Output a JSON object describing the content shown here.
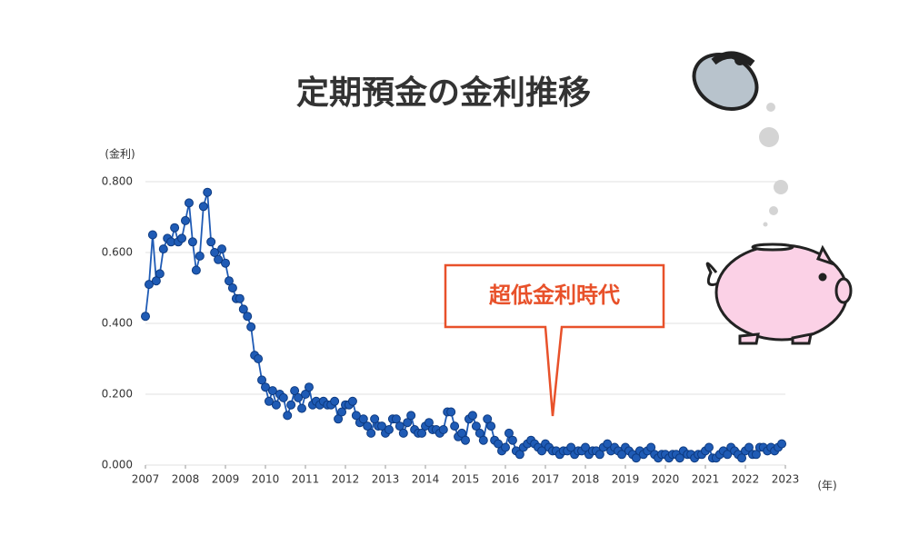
{
  "chart_data": {
    "type": "line",
    "title": "定期預金の金利推移",
    "y_label": "(金利)",
    "x_label": "(年)",
    "annotation": "超低金利時代",
    "color": "#1f5bb5",
    "grid": true,
    "xlim": [
      2007,
      2023
    ],
    "xticks": [
      2007,
      2008,
      2009,
      2010,
      2011,
      2012,
      2013,
      2014,
      2015,
      2016,
      2017,
      2018,
      2019,
      2020,
      2021,
      2022,
      2023
    ],
    "ylim": [
      0,
      0.8
    ],
    "yticks": [
      {
        "value": 0,
        "label": "0.000"
      },
      {
        "value": 0.2,
        "label": "0.200"
      },
      {
        "value": 0.4,
        "label": "0.400"
      },
      {
        "value": 0.6,
        "label": "0.600"
      },
      {
        "value": 0.8,
        "label": "0.800"
      }
    ],
    "x": [
      2007.0,
      2007.09,
      2007.18,
      2007.27,
      2007.36,
      2007.45,
      2007.55,
      2007.64,
      2007.73,
      2007.82,
      2007.91,
      2008.0,
      2008.09,
      2008.18,
      2008.27,
      2008.36,
      2008.45,
      2008.55,
      2008.64,
      2008.73,
      2008.82,
      2008.91,
      2009.0,
      2009.09,
      2009.18,
      2009.27,
      2009.36,
      2009.45,
      2009.55,
      2009.64,
      2009.73,
      2009.82,
      2009.91,
      2010.0,
      2010.09,
      2010.18,
      2010.27,
      2010.36,
      2010.45,
      2010.55,
      2010.64,
      2010.73,
      2010.82,
      2010.91,
      2011.0,
      2011.09,
      2011.18,
      2011.27,
      2011.36,
      2011.45,
      2011.55,
      2011.64,
      2011.73,
      2011.82,
      2011.91,
      2012.0,
      2012.09,
      2012.18,
      2012.27,
      2012.36,
      2012.45,
      2012.55,
      2012.64,
      2012.73,
      2012.82,
      2012.91,
      2013.0,
      2013.09,
      2013.18,
      2013.27,
      2013.36,
      2013.45,
      2013.55,
      2013.64,
      2013.73,
      2013.82,
      2013.91,
      2014.0,
      2014.09,
      2014.18,
      2014.27,
      2014.36,
      2014.45,
      2014.55,
      2014.64,
      2014.73,
      2014.82,
      2014.91,
      2015.0,
      2015.09,
      2015.18,
      2015.27,
      2015.36,
      2015.45,
      2015.55,
      2015.64,
      2015.73,
      2015.82,
      2015.91,
      2016.0,
      2016.09,
      2016.18,
      2016.27,
      2016.36,
      2016.45,
      2016.55,
      2016.64,
      2016.73,
      2016.82,
      2016.91,
      2017.0,
      2017.09,
      2017.18,
      2017.27,
      2017.36,
      2017.45,
      2017.55,
      2017.64,
      2017.73,
      2017.82,
      2017.91,
      2018.0,
      2018.09,
      2018.18,
      2018.27,
      2018.36,
      2018.45,
      2018.55,
      2018.64,
      2018.73,
      2018.82,
      2018.91,
      2019.0,
      2019.09,
      2019.18,
      2019.27,
      2019.36,
      2019.45,
      2019.55,
      2019.64,
      2019.73,
      2019.82,
      2019.91,
      2020.0,
      2020.09,
      2020.18,
      2020.27,
      2020.36,
      2020.45,
      2020.55,
      2020.64,
      2020.73,
      2020.82,
      2020.91,
      2021.0,
      2021.09,
      2021.18,
      2021.27,
      2021.36,
      2021.45,
      2021.55,
      2021.64,
      2021.73,
      2021.82,
      2021.91,
      2022.0,
      2022.09,
      2022.18,
      2022.27,
      2022.36,
      2022.45,
      2022.55,
      2022.64,
      2022.73,
      2022.82,
      2022.91
    ],
    "values": [
      0.42,
      0.51,
      0.65,
      0.52,
      0.54,
      0.61,
      0.64,
      0.63,
      0.67,
      0.63,
      0.64,
      0.69,
      0.74,
      0.63,
      0.55,
      0.59,
      0.73,
      0.77,
      0.63,
      0.6,
      0.58,
      0.61,
      0.57,
      0.52,
      0.5,
      0.47,
      0.47,
      0.44,
      0.42,
      0.39,
      0.31,
      0.3,
      0.24,
      0.22,
      0.18,
      0.21,
      0.17,
      0.2,
      0.19,
      0.14,
      0.17,
      0.21,
      0.19,
      0.16,
      0.2,
      0.22,
      0.17,
      0.18,
      0.17,
      0.18,
      0.17,
      0.17,
      0.18,
      0.13,
      0.15,
      0.17,
      0.17,
      0.18,
      0.14,
      0.12,
      0.13,
      0.11,
      0.09,
      0.13,
      0.11,
      0.11,
      0.09,
      0.1,
      0.13,
      0.13,
      0.11,
      0.09,
      0.12,
      0.14,
      0.1,
      0.09,
      0.09,
      0.11,
      0.12,
      0.1,
      0.1,
      0.09,
      0.1,
      0.15,
      0.15,
      0.11,
      0.08,
      0.09,
      0.07,
      0.13,
      0.14,
      0.11,
      0.09,
      0.07,
      0.13,
      0.11,
      0.07,
      0.06,
      0.04,
      0.05,
      0.09,
      0.07,
      0.04,
      0.03,
      0.05,
      0.06,
      0.07,
      0.06,
      0.05,
      0.04,
      0.06,
      0.05,
      0.04,
      0.04,
      0.03,
      0.04,
      0.04,
      0.05,
      0.03,
      0.04,
      0.04,
      0.05,
      0.03,
      0.04,
      0.04,
      0.03,
      0.05,
      0.06,
      0.04,
      0.05,
      0.04,
      0.03,
      0.05,
      0.04,
      0.03,
      0.02,
      0.04,
      0.03,
      0.04,
      0.05,
      0.03,
      0.02,
      0.03,
      0.03,
      0.02,
      0.03,
      0.03,
      0.02,
      0.04,
      0.03,
      0.03,
      0.02,
      0.03,
      0.03,
      0.04,
      0.05,
      0.02,
      0.02,
      0.03,
      0.04,
      0.03,
      0.05,
      0.04,
      0.03,
      0.02,
      0.04,
      0.05,
      0.03,
      0.03,
      0.05,
      0.05,
      0.04,
      0.05,
      0.04,
      0.05,
      0.06
    ]
  }
}
